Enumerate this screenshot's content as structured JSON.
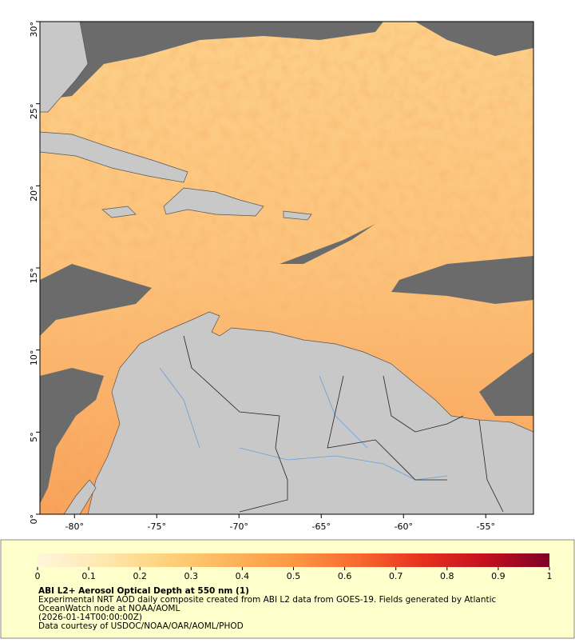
{
  "map": {
    "xlim": [
      -82.1,
      -52.1
    ],
    "ylim": [
      0,
      30
    ],
    "xticks": [
      {
        "value": -80,
        "label": "-80°"
      },
      {
        "value": -75,
        "label": "-75°"
      },
      {
        "value": -70,
        "label": "-70°"
      },
      {
        "value": -65,
        "label": "-65°"
      },
      {
        "value": -60,
        "label": "-60°"
      },
      {
        "value": -55,
        "label": "-55°"
      }
    ],
    "yticks": [
      {
        "value": 0,
        "label": "0°"
      },
      {
        "value": 5,
        "label": "5°"
      },
      {
        "value": 10,
        "label": "10°"
      },
      {
        "value": 15,
        "label": "15°"
      },
      {
        "value": 20,
        "label": "20°"
      },
      {
        "value": 25,
        "label": "25°"
      },
      {
        "value": 30,
        "label": "30°"
      }
    ]
  },
  "colorbar": {
    "range": [
      0,
      1
    ],
    "ticks": [
      0,
      0.1,
      0.2,
      0.3,
      0.4,
      0.5,
      0.6,
      0.7,
      0.8,
      0.9,
      1
    ],
    "colors": [
      "#fff6dc",
      "#fee8b0",
      "#fed27d",
      "#fdb55c",
      "#fc9744",
      "#f86a30",
      "#e7311f",
      "#c3101f",
      "#800026"
    ]
  },
  "caption": {
    "title": "ABI L2+ Aerosol Optical Depth at 550 nm (1)",
    "lines": [
      "Experimental NRT AOD daily composite created from ABI L2 data from GOES-19. Fields generated by Atlantic",
      "OceanWatch node at NOAA/AOML",
      "(2026-01-14T00:00:00Z)",
      "Data courtesy of USDOC/NOAA/OAR/AOML/PHOD"
    ]
  }
}
